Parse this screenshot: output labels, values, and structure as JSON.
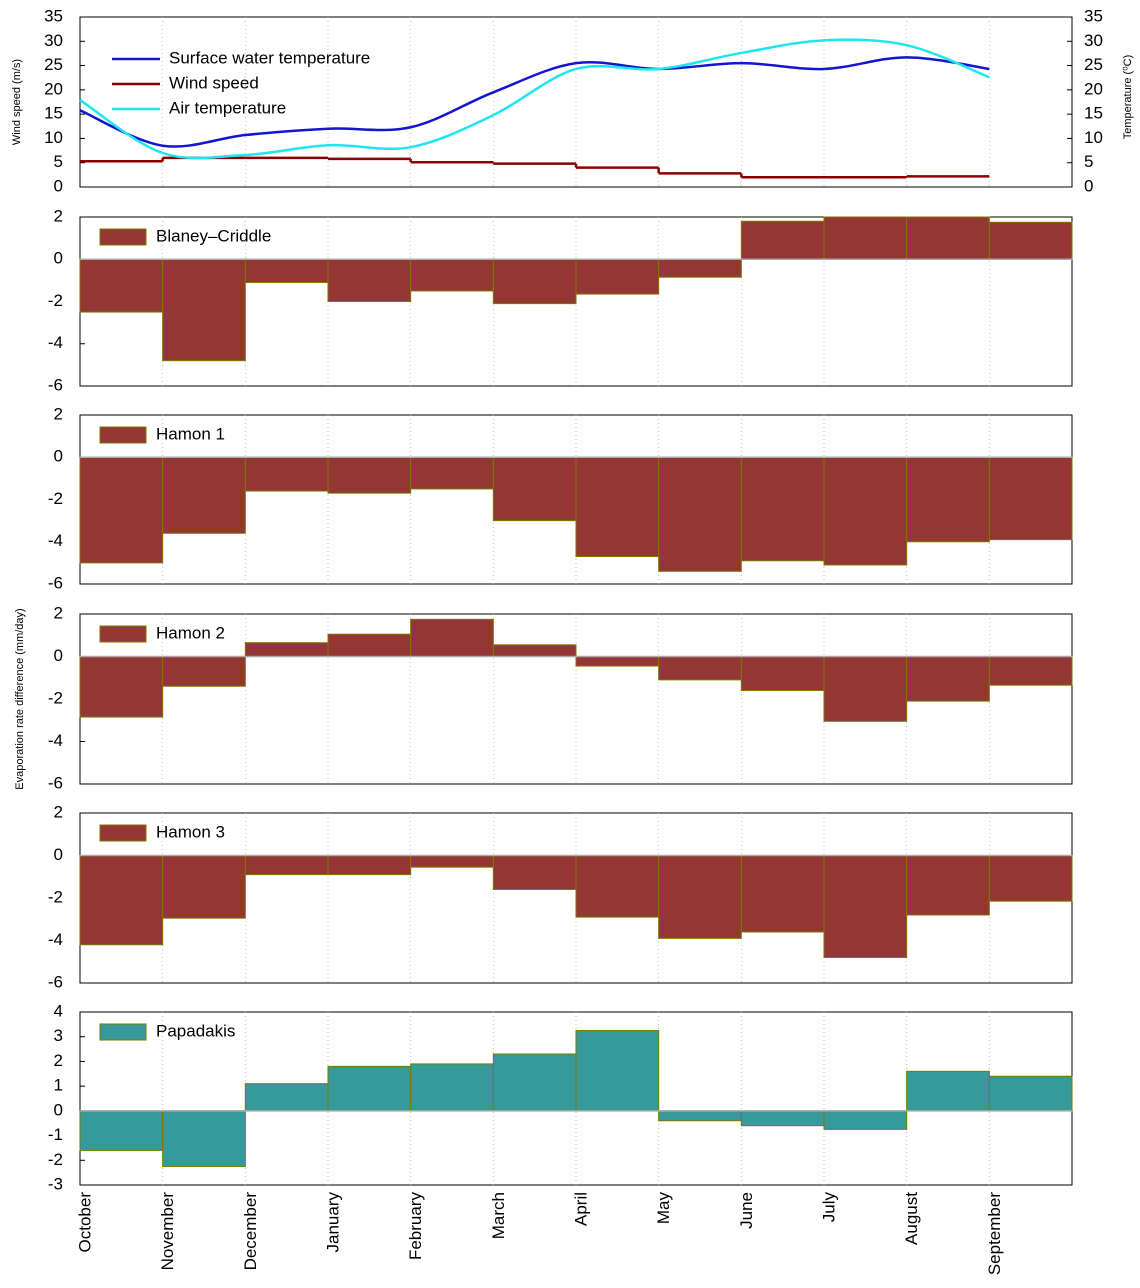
{
  "chart_data": [
    {
      "type": "line",
      "ylabel": "Wind speed (m/s)",
      "y2label": "Temperature (⁰C)",
      "ylim": [
        0,
        35
      ],
      "yticks": [
        0,
        5,
        10,
        15,
        20,
        25,
        30,
        35
      ],
      "y2lim": [
        0,
        35
      ],
      "y2ticks": [
        0,
        5,
        10,
        15,
        20,
        25,
        30,
        35
      ],
      "grid": true,
      "series": [
        {
          "name": "Surface water temperature",
          "color": "#1414d2",
          "axis": "y2",
          "values": [
            15.8,
            8.5,
            10.7,
            12.0,
            12.3,
            19.5,
            25.5,
            24.3,
            25.5,
            24.3,
            26.7,
            24.3
          ]
        },
        {
          "name": "Wind speed",
          "color": "#8b0000",
          "step": true,
          "values": [
            5.3,
            6.0,
            6.0,
            5.8,
            5.1,
            4.8,
            4.0,
            2.8,
            2.0,
            2.0,
            2.2,
            null
          ]
        },
        {
          "name": "Air temperature",
          "color": "#1ee6f0",
          "axis": "y2",
          "values": [
            17.9,
            7.0,
            6.6,
            8.6,
            8.2,
            14.8,
            24.3,
            24.3,
            27.6,
            30.2,
            29.2,
            22.6
          ]
        }
      ]
    },
    {
      "type": "bar",
      "name": "Blaney–Criddle",
      "color": "#943634",
      "ylim": [
        -6,
        2
      ],
      "yticks": [
        -6,
        -4,
        -2,
        0,
        2
      ],
      "grid": true,
      "values": [
        -2.5,
        -4.8,
        -1.1,
        -2.0,
        -1.5,
        -2.1,
        -1.65,
        -0.85,
        1.8,
        2.0,
        2.0,
        1.75
      ]
    },
    {
      "type": "bar",
      "name": "Hamon 1",
      "color": "#943634",
      "ylim": [
        -6,
        2
      ],
      "yticks": [
        -6,
        -4,
        -2,
        0,
        2
      ],
      "grid": true,
      "values": [
        -5.0,
        -3.6,
        -1.6,
        -1.7,
        -1.5,
        -3.0,
        -4.7,
        -5.4,
        -4.9,
        -5.1,
        -4.0,
        -3.9
      ]
    },
    {
      "type": "bar",
      "name": "Hamon 2",
      "color": "#943634",
      "ylim": [
        -6,
        2
      ],
      "yticks": [
        -6,
        -4,
        -2,
        0,
        2
      ],
      "grid": true,
      "ylabel": "Evaporation rate difference (mm/day)",
      "values": [
        -2.85,
        -1.4,
        0.65,
        1.05,
        1.75,
        0.55,
        -0.45,
        -1.1,
        -1.6,
        -3.05,
        -2.1,
        -1.35
      ]
    },
    {
      "type": "bar",
      "name": "Hamon 3",
      "color": "#943634",
      "ylim": [
        -6,
        2
      ],
      "yticks": [
        -6,
        -4,
        -2,
        0,
        2
      ],
      "grid": true,
      "values": [
        -4.2,
        -2.95,
        -0.9,
        -0.9,
        -0.55,
        -1.6,
        -2.9,
        -3.9,
        -3.6,
        -4.8,
        -2.8,
        -2.15
      ]
    },
    {
      "type": "bar",
      "name": "Papadakis",
      "color": "#379a9a",
      "ylim": [
        -3,
        4
      ],
      "yticks": [
        -3,
        -2,
        -1,
        0,
        1,
        2,
        3,
        4
      ],
      "grid": true,
      "categories": [
        "October",
        "November",
        "December",
        "January",
        "February",
        "March",
        "April",
        "May",
        "June",
        "July",
        "August",
        "September"
      ],
      "values": [
        -1.6,
        -2.25,
        1.1,
        1.8,
        1.9,
        2.3,
        3.25,
        -0.4,
        -0.6,
        -0.75,
        1.6,
        1.4
      ]
    }
  ]
}
